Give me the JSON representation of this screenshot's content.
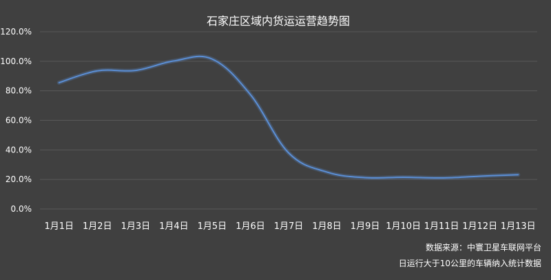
{
  "chart_data": {
    "type": "line",
    "title": "石家庄区域内货运运营趋势图",
    "categories": [
      "1月1日",
      "1月2日",
      "1月3日",
      "1月4日",
      "1月5日",
      "1月6日",
      "1月7日",
      "1月8日",
      "1月9日",
      "1月10日",
      "1月11日",
      "1月12日",
      "1月13日"
    ],
    "series": [
      {
        "values": [
          85.5,
          93.5,
          93.8,
          100.2,
          101.5,
          77.5,
          38.0,
          25.0,
          21.2,
          21.5,
          21.0,
          22.2,
          23.2
        ]
      }
    ],
    "ylim": [
      0,
      120
    ],
    "yticks": [
      "0.0%",
      "20.0%",
      "40.0%",
      "60.0%",
      "80.0%",
      "100.0%",
      "120.0%"
    ],
    "grid": true,
    "line_color": "#5b8fd6",
    "background": "#404040",
    "gridline_color": "#595959"
  },
  "notes": {
    "source": "数据来源：中寰卫星车联网平台",
    "definition": "日运行大于10公里的车辆纳入统计数据"
  }
}
